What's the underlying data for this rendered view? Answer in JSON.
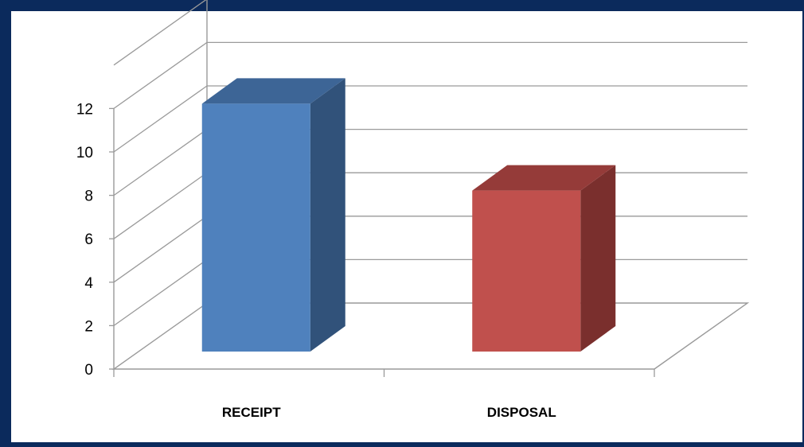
{
  "chart_data": {
    "type": "bar",
    "categories": [
      "RECEIPT",
      "DISPOSAL"
    ],
    "values": [
      12,
      8
    ],
    "title": "",
    "xlabel": "",
    "ylabel": "",
    "ylim": [
      0,
      12
    ],
    "yticks": [
      "0",
      "2",
      "4",
      "6",
      "8",
      "10",
      "12"
    ],
    "grid": true,
    "style": "3d-column",
    "colors": [
      {
        "front": "#4f81bd",
        "top": "#3d6596",
        "side": "#31527a"
      },
      {
        "front": "#c0504d",
        "top": "#953b39",
        "side": "#7a2f2d"
      }
    ],
    "background": "#ffffff",
    "border": "#0b2a5c"
  }
}
